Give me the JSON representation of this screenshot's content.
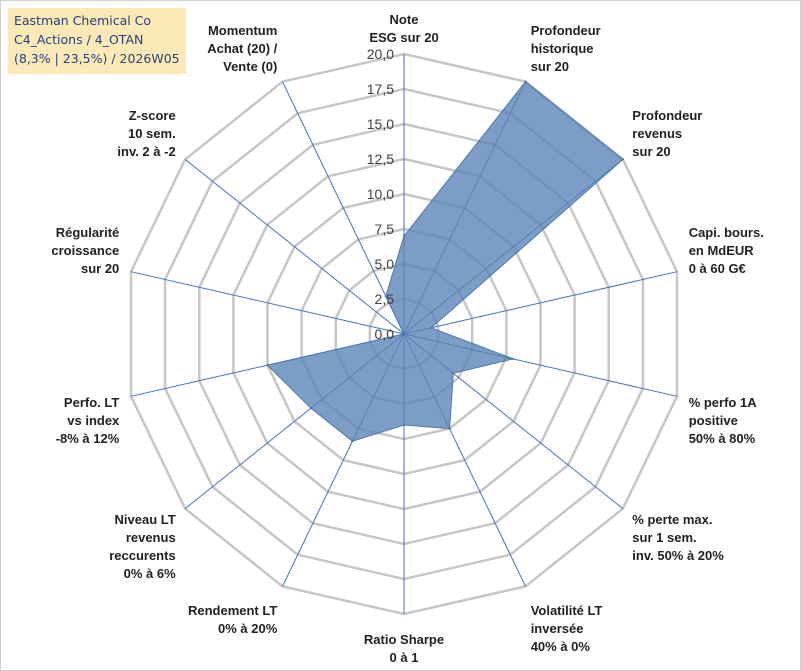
{
  "title_box": {
    "line1": "Eastman Chemical Co",
    "line2": "C4_Actions / 4_OTAN",
    "line3": "(8,3% | 23,5%) / 2026W05"
  },
  "colors": {
    "fill": "#5b84b8",
    "fill_opacity": 0.8,
    "spoke": "#4472c4",
    "grid": "#c6c6c6",
    "title_bg": "#fde9b8",
    "title_text": "#243f7a"
  },
  "chart_data": {
    "type": "radar",
    "rmin": 0,
    "rmax": 20,
    "tick_labels": [
      "0,0",
      "2,5",
      "5,0",
      "7,5",
      "10,0",
      "12,5",
      "15,0",
      "17,5",
      "20,0"
    ],
    "axes": [
      [
        "Note",
        "ESG sur 20"
      ],
      [
        "Profondeur",
        "historique",
        "sur 20"
      ],
      [
        "Profondeur",
        "revenus",
        "sur 20"
      ],
      [
        "Capi. bours.",
        "en MdEUR",
        "0 à 60 G€"
      ],
      [
        "% perfo 1A",
        "positive",
        "50% à 80%"
      ],
      [
        "% perte max.",
        "sur 1 sem.",
        "inv. 50% à 20%"
      ],
      [
        "Volatilité LT",
        "inversée",
        "40% à 0%"
      ],
      [
        "Ratio Sharpe",
        "0 à 1"
      ],
      [
        "Rendement LT",
        "0% à 20%"
      ],
      [
        "Niveau LT",
        "revenus",
        "reccurents",
        "0% à 6%"
      ],
      [
        "Perfo. LT",
        "vs index",
        "-8% à 12%"
      ],
      [
        "Régularité",
        "croissance",
        "sur 20"
      ],
      [
        "Z-score",
        "10 sem.",
        "inv. 2 à -2"
      ],
      [
        "Momentum",
        "Achat (20) /",
        "Vente (0)"
      ]
    ],
    "values": [
      7.0,
      20.0,
      20.0,
      2.0,
      8.0,
      4.5,
      7.5,
      6.5,
      8.5,
      8.5,
      10.0,
      0.0,
      0.0,
      3.0
    ]
  }
}
